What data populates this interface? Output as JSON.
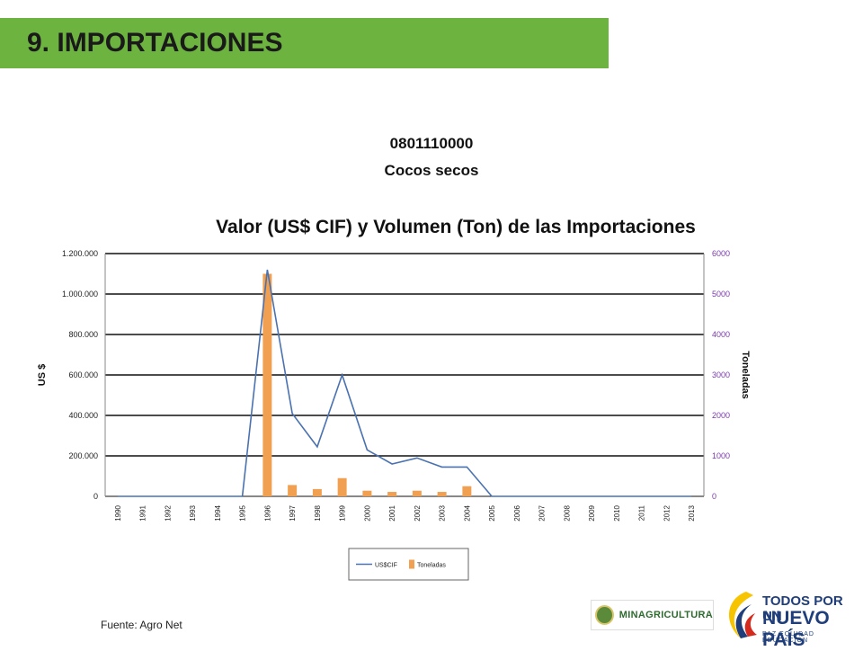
{
  "header": {
    "title": "9. IMPORTACIONES"
  },
  "product": {
    "code": "0801110000",
    "name": "Cocos secos"
  },
  "chart_data": {
    "type": "bar",
    "title": "Valor (US$ CIF) y Volumen (Ton) de las Importaciones",
    "categories": [
      "1990",
      "1991",
      "1992",
      "1993",
      "1994",
      "1995",
      "1996",
      "1997",
      "1998",
      "1999",
      "2000",
      "2001",
      "2002",
      "2003",
      "2004",
      "2005",
      "2006",
      "2007",
      "2008",
      "2009",
      "2010",
      "2011",
      "2012",
      "2013"
    ],
    "ylabel": "US $",
    "y2label": "Toneladas",
    "ylim": [
      0,
      1200000
    ],
    "y2lim": [
      0,
      6000
    ],
    "yticks": [
      "1.200.000",
      "1.000.000",
      "800.000",
      "600.000",
      "400.000",
      "200.000",
      "0"
    ],
    "y2ticks": [
      "6000",
      "5000",
      "4000",
      "3000",
      "2000",
      "1000",
      "0"
    ],
    "legend_position": "bottom",
    "series": [
      {
        "name": "US$CIF",
        "type": "line",
        "axis": "left",
        "color": "#4a72b0",
        "values": [
          0,
          0,
          0,
          0,
          0,
          0,
          1120000,
          410000,
          245000,
          600000,
          230000,
          160000,
          190000,
          145000,
          145000,
          0,
          0,
          0,
          0,
          0,
          0,
          0,
          0,
          0
        ]
      },
      {
        "name": "Toneladas",
        "type": "bar",
        "axis": "right",
        "color": "#f0a050",
        "values": [
          0,
          0,
          0,
          0,
          0,
          0,
          5500,
          280,
          180,
          450,
          140,
          110,
          140,
          110,
          250,
          0,
          0,
          0,
          0,
          0,
          0,
          0,
          0,
          0
        ]
      }
    ]
  },
  "footer": {
    "source": "Fuente: Agro Net",
    "logo_minagri": "MINAGRICULTURA",
    "logo_tpun_line1": "TODOS POR UN",
    "logo_tpun_line2": "NUEVO PAÍS",
    "logo_tpun_line3": "PAZ  EQUIDAD  EDUCACIÓN"
  }
}
